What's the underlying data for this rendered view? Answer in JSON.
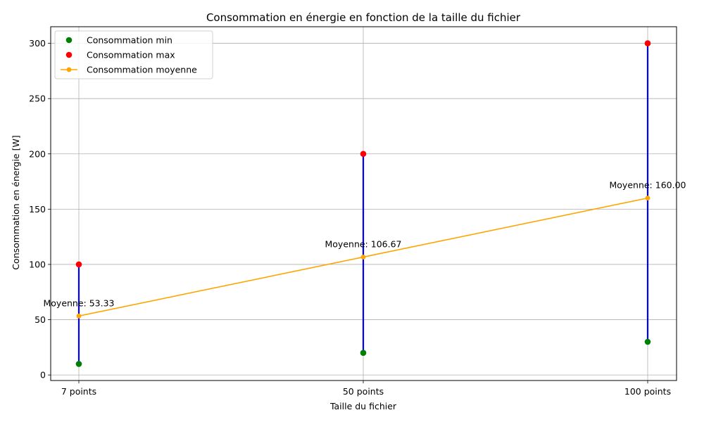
{
  "chart_data": {
    "type": "scatter",
    "title": "Consommation en énergie en fonction de la taille du fichier",
    "xlabel": "Taille du fichier",
    "ylabel": "Consommation en énergie [W]",
    "categories": [
      "7 points",
      "50 points",
      "100 points"
    ],
    "ylim": [
      -5,
      315
    ],
    "yticks": [
      0,
      50,
      100,
      150,
      200,
      250,
      300
    ],
    "grid": true,
    "legend_position": "top-left",
    "series": [
      {
        "name": "Consommation min",
        "kind": "scatter",
        "color": "#008000",
        "values": [
          10,
          20,
          30
        ]
      },
      {
        "name": "Consommation max",
        "kind": "scatter",
        "color": "#ff0000",
        "values": [
          100,
          200,
          300
        ]
      },
      {
        "name": "Consommation moyenne",
        "kind": "line",
        "color": "#ffa500",
        "values": [
          53.33,
          106.67,
          160.0
        ]
      }
    ],
    "range_line_color": "#0000ff",
    "annotations": [
      "Moyenne: 53.33",
      "Moyenne: 106.67",
      "Moyenne: 160.00"
    ]
  }
}
